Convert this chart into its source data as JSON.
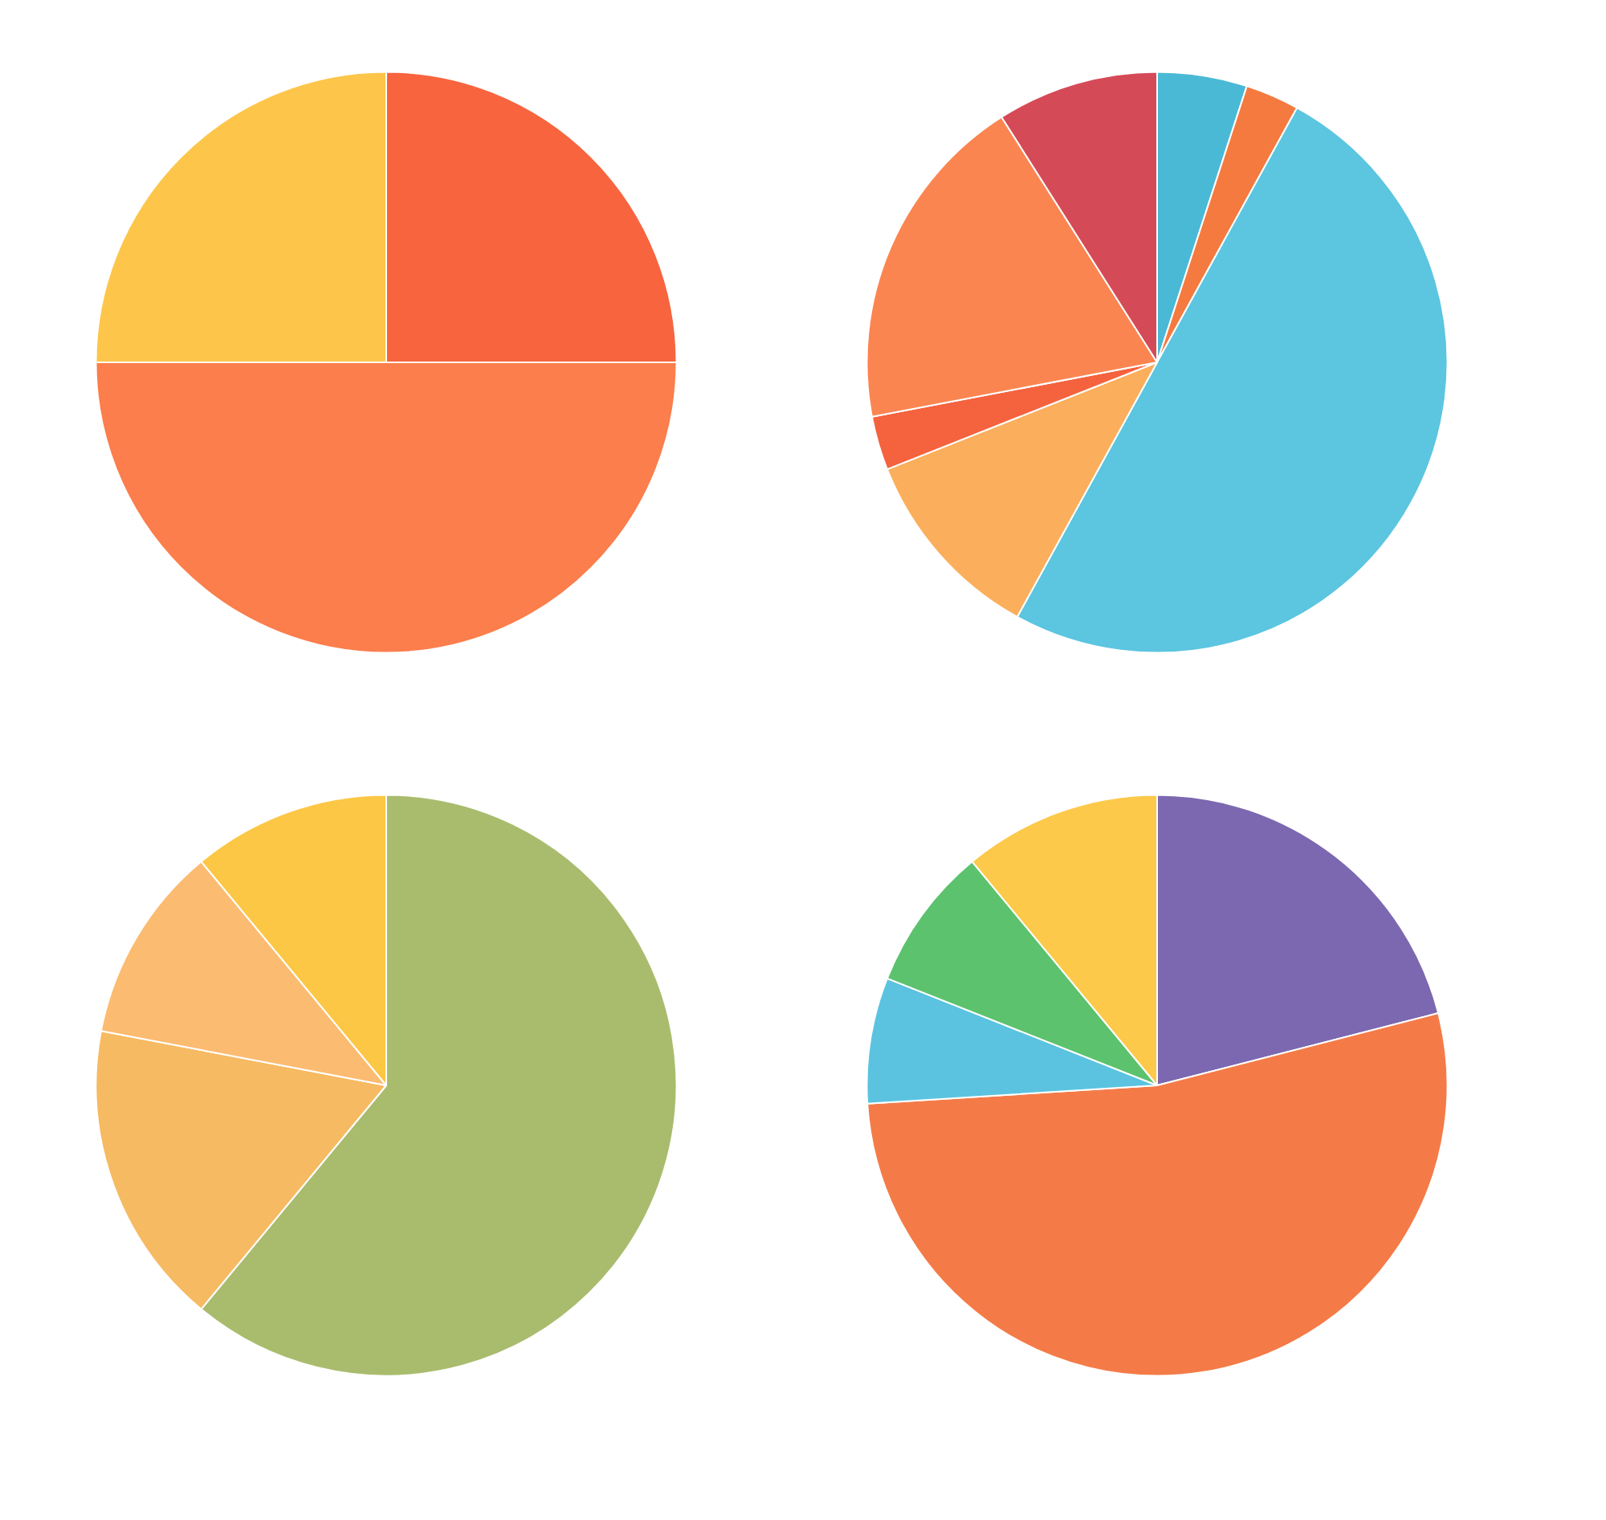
{
  "chart_data": [
    {
      "type": "pie",
      "categories": [
        null,
        null,
        null
      ],
      "values": [
        25,
        50,
        25
      ],
      "colors": [
        "#f7643e",
        "#fb7e4c",
        "#fdc64a"
      ]
    },
    {
      "type": "pie",
      "categories": [
        null,
        null,
        null,
        null,
        null,
        null,
        null
      ],
      "values": [
        5,
        3,
        50,
        11,
        3,
        19,
        9
      ],
      "colors": [
        "#4ab9d6",
        "#f47a3f",
        "#5cc5e0",
        "#fbae5c",
        "#f4623e",
        "#fb8551",
        "#d54a57"
      ]
    },
    {
      "type": "pie",
      "categories": [
        null,
        null,
        null,
        null
      ],
      "values": [
        61,
        17,
        11,
        11
      ],
      "colors": [
        "#a9bc6e",
        "#f6ba62",
        "#fbbb70",
        "#fcc745"
      ]
    },
    {
      "type": "pie",
      "categories": [
        null,
        null,
        null,
        null,
        null
      ],
      "values": [
        21,
        53,
        7,
        8,
        11
      ],
      "colors": [
        "#7b68b0",
        "#f47b47",
        "#5bc3e0",
        "#5cc26e",
        "#fcc94a"
      ]
    }
  ]
}
